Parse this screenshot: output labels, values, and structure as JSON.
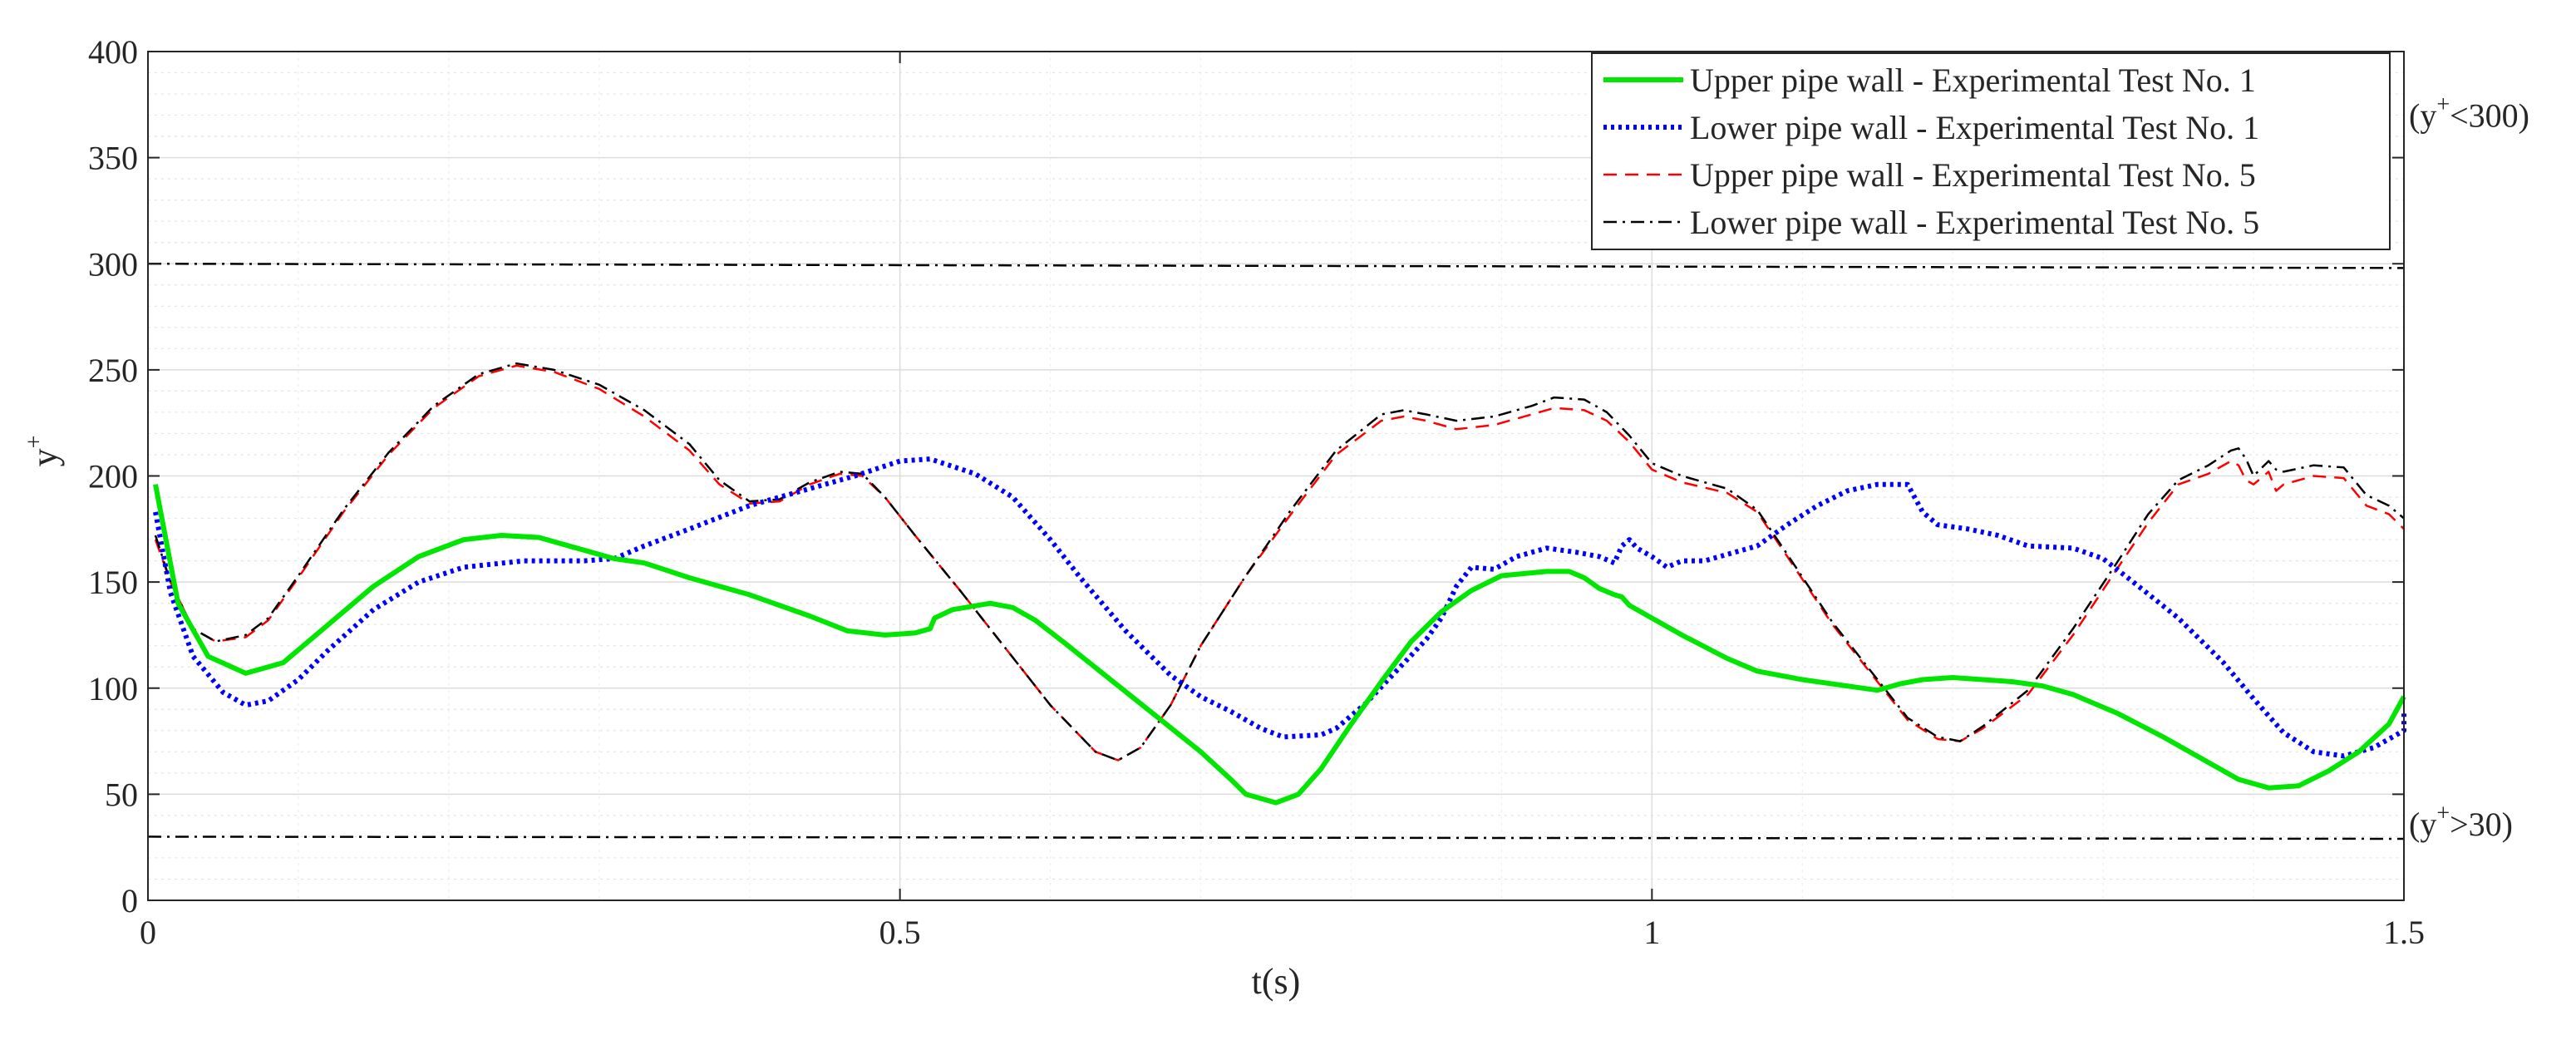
{
  "chart_data": {
    "type": "line",
    "xlabel": "t(s)",
    "ylabel": "y",
    "ylabel_sup": "+",
    "xlim": [
      0,
      1.5
    ],
    "ylim": [
      0,
      400
    ],
    "xticks": [
      0,
      0.5,
      1,
      1.5
    ],
    "xtick_labels": [
      "0",
      "0.5",
      "1",
      "1.5"
    ],
    "yticks": [
      0,
      50,
      100,
      150,
      200,
      250,
      300,
      350,
      400
    ],
    "ytick_labels": [
      "0",
      "50",
      "100",
      "150",
      "200",
      "250",
      "300",
      "350",
      "400"
    ],
    "grid": true,
    "minor_grid": true,
    "legend_position": "top-right",
    "series": [
      {
        "name": "Upper pipe wall - Experimental Test No. 1",
        "color": "#00e600",
        "style": "solid",
        "points": [
          [
            0.005,
            196
          ],
          [
            0.02,
            140
          ],
          [
            0.04,
            115
          ],
          [
            0.065,
            107
          ],
          [
            0.09,
            112
          ],
          [
            0.12,
            130
          ],
          [
            0.15,
            148
          ],
          [
            0.18,
            162
          ],
          [
            0.21,
            170
          ],
          [
            0.235,
            172
          ],
          [
            0.26,
            171
          ],
          [
            0.29,
            165
          ],
          [
            0.31,
            161
          ],
          [
            0.33,
            159
          ],
          [
            0.36,
            152
          ],
          [
            0.4,
            144
          ],
          [
            0.44,
            134
          ],
          [
            0.465,
            127
          ],
          [
            0.49,
            125
          ],
          [
            0.51,
            126
          ],
          [
            0.52,
            128
          ],
          [
            0.523,
            133
          ],
          [
            0.535,
            137
          ],
          [
            0.56,
            140
          ],
          [
            0.575,
            138
          ],
          [
            0.59,
            132
          ],
          [
            0.61,
            121
          ],
          [
            0.64,
            104
          ],
          [
            0.67,
            87
          ],
          [
            0.7,
            70
          ],
          [
            0.72,
            57
          ],
          [
            0.73,
            50
          ],
          [
            0.75,
            46
          ],
          [
            0.765,
            50
          ],
          [
            0.78,
            62
          ],
          [
            0.8,
            83
          ],
          [
            0.82,
            103
          ],
          [
            0.84,
            122
          ],
          [
            0.86,
            136
          ],
          [
            0.88,
            146
          ],
          [
            0.9,
            153
          ],
          [
            0.93,
            155
          ],
          [
            0.945,
            155
          ],
          [
            0.955,
            152
          ],
          [
            0.965,
            147
          ],
          [
            0.975,
            144
          ],
          [
            0.98,
            143
          ],
          [
            0.985,
            139
          ],
          [
            1.0,
            133
          ],
          [
            1.02,
            125
          ],
          [
            1.05,
            114
          ],
          [
            1.07,
            108
          ],
          [
            1.1,
            104
          ],
          [
            1.13,
            101
          ],
          [
            1.15,
            99
          ],
          [
            1.165,
            102
          ],
          [
            1.18,
            104
          ],
          [
            1.2,
            105
          ],
          [
            1.22,
            104
          ],
          [
            1.24,
            103
          ],
          [
            1.26,
            101
          ],
          [
            1.28,
            97
          ],
          [
            1.31,
            88
          ],
          [
            1.34,
            77
          ],
          [
            1.37,
            65
          ],
          [
            1.39,
            57
          ],
          [
            1.41,
            53
          ],
          [
            1.43,
            54
          ],
          [
            1.45,
            61
          ],
          [
            1.47,
            70
          ],
          [
            1.49,
            83
          ],
          [
            1.5,
            96
          ]
        ]
      },
      {
        "name": "Lower pipe wall - Experimental Test No. 1",
        "color": "#0000ff",
        "style": "dotted",
        "points": [
          [
            0.005,
            183
          ],
          [
            0.015,
            145
          ],
          [
            0.03,
            115
          ],
          [
            0.05,
            98
          ],
          [
            0.065,
            92
          ],
          [
            0.08,
            94
          ],
          [
            0.1,
            104
          ],
          [
            0.12,
            118
          ],
          [
            0.15,
            137
          ],
          [
            0.18,
            150
          ],
          [
            0.21,
            157
          ],
          [
            0.25,
            160
          ],
          [
            0.29,
            160
          ],
          [
            0.31,
            161
          ],
          [
            0.33,
            167
          ],
          [
            0.36,
            175
          ],
          [
            0.4,
            186
          ],
          [
            0.44,
            194
          ],
          [
            0.47,
            200
          ],
          [
            0.5,
            207
          ],
          [
            0.52,
            208
          ],
          [
            0.55,
            201
          ],
          [
            0.575,
            190
          ],
          [
            0.6,
            170
          ],
          [
            0.62,
            152
          ],
          [
            0.65,
            127
          ],
          [
            0.68,
            106
          ],
          [
            0.7,
            96
          ],
          [
            0.72,
            89
          ],
          [
            0.74,
            81
          ],
          [
            0.755,
            77
          ],
          [
            0.78,
            78
          ],
          [
            0.79,
            81
          ],
          [
            0.81,
            93
          ],
          [
            0.83,
            108
          ],
          [
            0.85,
            123
          ],
          [
            0.86,
            133
          ],
          [
            0.87,
            148
          ],
          [
            0.88,
            157
          ],
          [
            0.895,
            156
          ],
          [
            0.91,
            162
          ],
          [
            0.93,
            166
          ],
          [
            0.95,
            164
          ],
          [
            0.965,
            162
          ],
          [
            0.975,
            159
          ],
          [
            0.98,
            167
          ],
          [
            0.985,
            170
          ],
          [
            0.99,
            166
          ],
          [
            1.0,
            162
          ],
          [
            1.01,
            157
          ],
          [
            1.02,
            160
          ],
          [
            1.035,
            160
          ],
          [
            1.05,
            163
          ],
          [
            1.07,
            167
          ],
          [
            1.09,
            177
          ],
          [
            1.11,
            186
          ],
          [
            1.13,
            193
          ],
          [
            1.15,
            196
          ],
          [
            1.17,
            196
          ],
          [
            1.18,
            183
          ],
          [
            1.19,
            177
          ],
          [
            1.21,
            175
          ],
          [
            1.23,
            172
          ],
          [
            1.25,
            167
          ],
          [
            1.28,
            166
          ],
          [
            1.3,
            161
          ],
          [
            1.32,
            150
          ],
          [
            1.35,
            133
          ],
          [
            1.38,
            112
          ],
          [
            1.4,
            95
          ],
          [
            1.42,
            79
          ],
          [
            1.44,
            70
          ],
          [
            1.46,
            68
          ],
          [
            1.48,
            72
          ],
          [
            1.5,
            80
          ],
          [
            1.52,
            86
          ],
          [
            1.5,
            88
          ]
        ]
      },
      {
        "name": "Upper pipe wall - Experimental Test No. 5",
        "color": "#ff0000",
        "style": "dashed",
        "points": [
          [
            0.005,
            170
          ],
          [
            0.015,
            150
          ],
          [
            0.03,
            128
          ],
          [
            0.045,
            122
          ],
          [
            0.065,
            124
          ],
          [
            0.08,
            132
          ],
          [
            0.1,
            152
          ],
          [
            0.13,
            183
          ],
          [
            0.16,
            210
          ],
          [
            0.19,
            232
          ],
          [
            0.22,
            247
          ],
          [
            0.245,
            252
          ],
          [
            0.27,
            249
          ],
          [
            0.3,
            241
          ],
          [
            0.33,
            228
          ],
          [
            0.36,
            212
          ],
          [
            0.38,
            196
          ],
          [
            0.4,
            187
          ],
          [
            0.42,
            188
          ],
          [
            0.44,
            196
          ],
          [
            0.46,
            201
          ],
          [
            0.475,
            200
          ],
          [
            0.49,
            190
          ],
          [
            0.51,
            172
          ],
          [
            0.54,
            146
          ],
          [
            0.57,
            119
          ],
          [
            0.6,
            92
          ],
          [
            0.63,
            70
          ],
          [
            0.645,
            66
          ],
          [
            0.66,
            72
          ],
          [
            0.68,
            92
          ],
          [
            0.7,
            120
          ],
          [
            0.73,
            153
          ],
          [
            0.76,
            182
          ],
          [
            0.79,
            210
          ],
          [
            0.82,
            226
          ],
          [
            0.835,
            228
          ],
          [
            0.85,
            226
          ],
          [
            0.87,
            222
          ],
          [
            0.895,
            224
          ],
          [
            0.92,
            229
          ],
          [
            0.935,
            232
          ],
          [
            0.955,
            231
          ],
          [
            0.97,
            226
          ],
          [
            0.985,
            216
          ],
          [
            1.0,
            203
          ],
          [
            1.02,
            197
          ],
          [
            1.05,
            192
          ],
          [
            1.07,
            183
          ],
          [
            1.09,
            162
          ],
          [
            1.12,
            130
          ],
          [
            1.15,
            103
          ],
          [
            1.17,
            85
          ],
          [
            1.19,
            76
          ],
          [
            1.205,
            75
          ],
          [
            1.22,
            81
          ],
          [
            1.25,
            97
          ],
          [
            1.28,
            125
          ],
          [
            1.31,
            157
          ],
          [
            1.33,
            178
          ],
          [
            1.35,
            196
          ],
          [
            1.37,
            201
          ],
          [
            1.385,
            207
          ],
          [
            1.39,
            205
          ],
          [
            1.395,
            198
          ],
          [
            1.4,
            196
          ],
          [
            1.41,
            202
          ],
          [
            1.415,
            193
          ],
          [
            1.42,
            196
          ],
          [
            1.44,
            200
          ],
          [
            1.46,
            199
          ],
          [
            1.475,
            186
          ],
          [
            1.49,
            182
          ],
          [
            1.5,
            175
          ]
        ]
      },
      {
        "name": "Lower pipe wall - Experimental Test No. 5",
        "color": "#000000",
        "style": "dashdot",
        "points": [
          [
            0.005,
            172
          ],
          [
            0.015,
            150
          ],
          [
            0.03,
            128
          ],
          [
            0.045,
            122
          ],
          [
            0.065,
            125
          ],
          [
            0.08,
            133
          ],
          [
            0.1,
            153
          ],
          [
            0.13,
            184
          ],
          [
            0.16,
            211
          ],
          [
            0.19,
            233
          ],
          [
            0.22,
            248
          ],
          [
            0.245,
            253
          ],
          [
            0.27,
            250
          ],
          [
            0.3,
            243
          ],
          [
            0.33,
            231
          ],
          [
            0.36,
            215
          ],
          [
            0.38,
            198
          ],
          [
            0.4,
            188
          ],
          [
            0.42,
            189
          ],
          [
            0.44,
            197
          ],
          [
            0.46,
            202
          ],
          [
            0.475,
            201
          ],
          [
            0.49,
            190
          ],
          [
            0.51,
            172
          ],
          [
            0.54,
            146
          ],
          [
            0.57,
            119
          ],
          [
            0.6,
            92
          ],
          [
            0.63,
            70
          ],
          [
            0.645,
            66
          ],
          [
            0.66,
            72
          ],
          [
            0.68,
            92
          ],
          [
            0.7,
            120
          ],
          [
            0.73,
            153
          ],
          [
            0.76,
            184
          ],
          [
            0.79,
            212
          ],
          [
            0.82,
            229
          ],
          [
            0.835,
            231
          ],
          [
            0.85,
            229
          ],
          [
            0.87,
            226
          ],
          [
            0.895,
            228
          ],
          [
            0.92,
            233
          ],
          [
            0.935,
            237
          ],
          [
            0.955,
            236
          ],
          [
            0.97,
            230
          ],
          [
            0.985,
            219
          ],
          [
            1.0,
            206
          ],
          [
            1.02,
            200
          ],
          [
            1.05,
            194
          ],
          [
            1.07,
            184
          ],
          [
            1.09,
            163
          ],
          [
            1.12,
            131
          ],
          [
            1.15,
            104
          ],
          [
            1.17,
            86
          ],
          [
            1.19,
            77
          ],
          [
            1.205,
            75
          ],
          [
            1.22,
            82
          ],
          [
            1.25,
            99
          ],
          [
            1.28,
            128
          ],
          [
            1.31,
            160
          ],
          [
            1.33,
            182
          ],
          [
            1.35,
            198
          ],
          [
            1.37,
            205
          ],
          [
            1.385,
            212
          ],
          [
            1.39,
            213
          ],
          [
            1.395,
            208
          ],
          [
            1.4,
            200
          ],
          [
            1.41,
            207
          ],
          [
            1.415,
            203
          ],
          [
            1.42,
            202
          ],
          [
            1.44,
            205
          ],
          [
            1.46,
            204
          ],
          [
            1.475,
            191
          ],
          [
            1.49,
            186
          ],
          [
            1.5,
            180
          ]
        ]
      }
    ],
    "reference_lines": [
      {
        "y": 300,
        "y_end": 298,
        "label_base": "(y",
        "label_sup": "+",
        "label_tail": "<300)",
        "label_y": 370
      },
      {
        "y": 30,
        "y_end": 29,
        "label_base": "(y",
        "label_sup": "+",
        "label_tail": ">30)",
        "label_y": 36
      }
    ]
  }
}
